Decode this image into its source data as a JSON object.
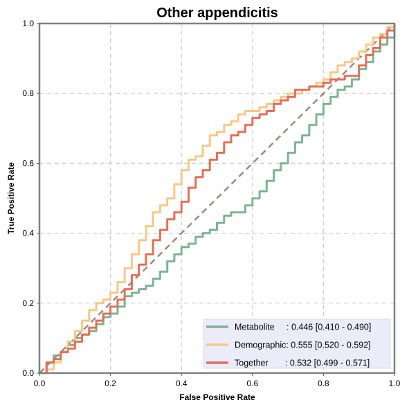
{
  "chart_data": {
    "type": "line",
    "title": "Other appendicitis",
    "xlabel": "False Positive Rate",
    "ylabel": "True Positive Rate",
    "xlim": [
      0,
      1
    ],
    "ylim": [
      0,
      1
    ],
    "grid": true,
    "legend_position": "bottom-right",
    "x_ticks": [
      "0.0",
      "0.2",
      "0.4",
      "0.6",
      "0.8",
      "1.0"
    ],
    "y_ticks": [
      "0.0",
      "0.2",
      "0.4",
      "0.6",
      "0.8",
      "1.0"
    ],
    "diagonal": {
      "x": [
        0,
        1
      ],
      "y": [
        0,
        1
      ],
      "color": "#a0887c",
      "style": "dashed"
    },
    "series": [
      {
        "name": "Metabolite",
        "legend_label": "Metabolite     : 0.446 [0.410 - 0.490]",
        "color": "#7eb394",
        "x": [
          0,
          0.02,
          0.04,
          0.06,
          0.08,
          0.1,
          0.12,
          0.14,
          0.16,
          0.18,
          0.2,
          0.22,
          0.24,
          0.26,
          0.28,
          0.3,
          0.32,
          0.34,
          0.36,
          0.38,
          0.4,
          0.42,
          0.44,
          0.46,
          0.48,
          0.5,
          0.52,
          0.54,
          0.56,
          0.58,
          0.6,
          0.62,
          0.64,
          0.66,
          0.68,
          0.7,
          0.72,
          0.74,
          0.76,
          0.78,
          0.8,
          0.82,
          0.84,
          0.86,
          0.88,
          0.9,
          0.92,
          0.94,
          0.96,
          0.98,
          1.0
        ],
        "y": [
          0,
          0.03,
          0.05,
          0.06,
          0.08,
          0.1,
          0.11,
          0.12,
          0.14,
          0.16,
          0.17,
          0.19,
          0.22,
          0.23,
          0.24,
          0.25,
          0.27,
          0.29,
          0.32,
          0.34,
          0.36,
          0.37,
          0.39,
          0.4,
          0.41,
          0.43,
          0.45,
          0.46,
          0.46,
          0.48,
          0.5,
          0.52,
          0.55,
          0.58,
          0.6,
          0.63,
          0.66,
          0.68,
          0.71,
          0.74,
          0.77,
          0.79,
          0.81,
          0.82,
          0.84,
          0.87,
          0.89,
          0.92,
          0.94,
          0.96,
          1.0
        ]
      },
      {
        "name": "Demographic",
        "legend_label": "Demographic: 0.555 [0.520 - 0.592]",
        "color": "#f3c98b",
        "x": [
          0,
          0.02,
          0.04,
          0.06,
          0.08,
          0.1,
          0.12,
          0.14,
          0.16,
          0.18,
          0.2,
          0.22,
          0.24,
          0.26,
          0.28,
          0.3,
          0.32,
          0.34,
          0.36,
          0.38,
          0.4,
          0.42,
          0.44,
          0.46,
          0.48,
          0.5,
          0.52,
          0.54,
          0.56,
          0.58,
          0.6,
          0.62,
          0.64,
          0.66,
          0.68,
          0.7,
          0.72,
          0.74,
          0.76,
          0.78,
          0.8,
          0.82,
          0.84,
          0.86,
          0.88,
          0.9,
          0.92,
          0.94,
          0.96,
          0.98,
          1.0
        ],
        "y": [
          0,
          0.01,
          0.03,
          0.06,
          0.09,
          0.12,
          0.15,
          0.18,
          0.2,
          0.21,
          0.23,
          0.26,
          0.3,
          0.34,
          0.38,
          0.42,
          0.46,
          0.48,
          0.5,
          0.54,
          0.58,
          0.61,
          0.62,
          0.65,
          0.68,
          0.69,
          0.71,
          0.72,
          0.74,
          0.75,
          0.75,
          0.76,
          0.77,
          0.78,
          0.79,
          0.8,
          0.8,
          0.81,
          0.82,
          0.83,
          0.84,
          0.86,
          0.88,
          0.89,
          0.9,
          0.92,
          0.94,
          0.96,
          0.97,
          0.99,
          1.0
        ]
      },
      {
        "name": "Together",
        "legend_label": "Together       : 0.532 [0.499 - 0.571]",
        "color": "#e07157",
        "x": [
          0,
          0.02,
          0.04,
          0.06,
          0.08,
          0.1,
          0.12,
          0.14,
          0.16,
          0.18,
          0.2,
          0.22,
          0.24,
          0.26,
          0.28,
          0.3,
          0.32,
          0.34,
          0.36,
          0.38,
          0.4,
          0.42,
          0.44,
          0.46,
          0.48,
          0.5,
          0.52,
          0.54,
          0.56,
          0.58,
          0.6,
          0.62,
          0.64,
          0.66,
          0.68,
          0.7,
          0.72,
          0.74,
          0.76,
          0.78,
          0.8,
          0.82,
          0.84,
          0.86,
          0.88,
          0.9,
          0.92,
          0.94,
          0.96,
          0.98,
          1.0
        ],
        "y": [
          0,
          0.03,
          0.04,
          0.06,
          0.07,
          0.09,
          0.11,
          0.13,
          0.15,
          0.17,
          0.19,
          0.21,
          0.24,
          0.28,
          0.31,
          0.34,
          0.38,
          0.41,
          0.44,
          0.46,
          0.49,
          0.53,
          0.56,
          0.58,
          0.61,
          0.63,
          0.66,
          0.68,
          0.69,
          0.71,
          0.73,
          0.74,
          0.75,
          0.77,
          0.78,
          0.79,
          0.81,
          0.81,
          0.82,
          0.82,
          0.83,
          0.84,
          0.84,
          0.85,
          0.85,
          0.88,
          0.91,
          0.93,
          0.96,
          0.98,
          1.0
        ]
      }
    ]
  }
}
